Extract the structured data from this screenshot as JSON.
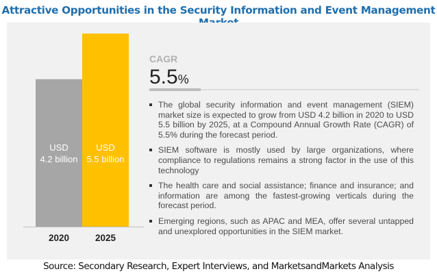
{
  "title": "Attractive Opportunities in the Security Information and Event Management Market",
  "chart_data": {
    "type": "bar",
    "title": "Attractive Opportunities in the Security Information and Event Management Market",
    "categories": [
      "2020",
      "2025"
    ],
    "values": [
      4.2,
      5.5
    ],
    "unit": "USD billion",
    "data_labels": [
      {
        "line1": "USD",
        "line2": "4.2 billion"
      },
      {
        "line1": "USD",
        "line2": "5.5 billion"
      }
    ],
    "colors": [
      "#a6a6a6",
      "#ffc000"
    ],
    "xlabel": "",
    "ylabel": "",
    "ylim": [
      0,
      5.5
    ],
    "grid": false,
    "legend": "none"
  },
  "cagr": {
    "label": "CAGR",
    "value": "5.5",
    "unit": "%"
  },
  "bullets": [
    "The global security information and event management (SIEM) market size is expected to grow from USD 4.2 billion in 2020 to USD 5.5 billion by 2025, at a Compound Annual Growth Rate (CAGR) of 5.5% during the forecast period.",
    "SIEM software is mostly used by large organizations, where compliance to regulations remains a strong factor in the use of this technology",
    "The health care and social assistance; finance and insurance; and information are among the fastest-growing verticals during the forecast period.",
    "Emerging regions, such as APAC and MEA, offer several untapped and unexplored opportunities in the SIEM market."
  ],
  "source": "Source: Secondary Research, Expert Interviews, and MarketsandMarkets Analysis"
}
